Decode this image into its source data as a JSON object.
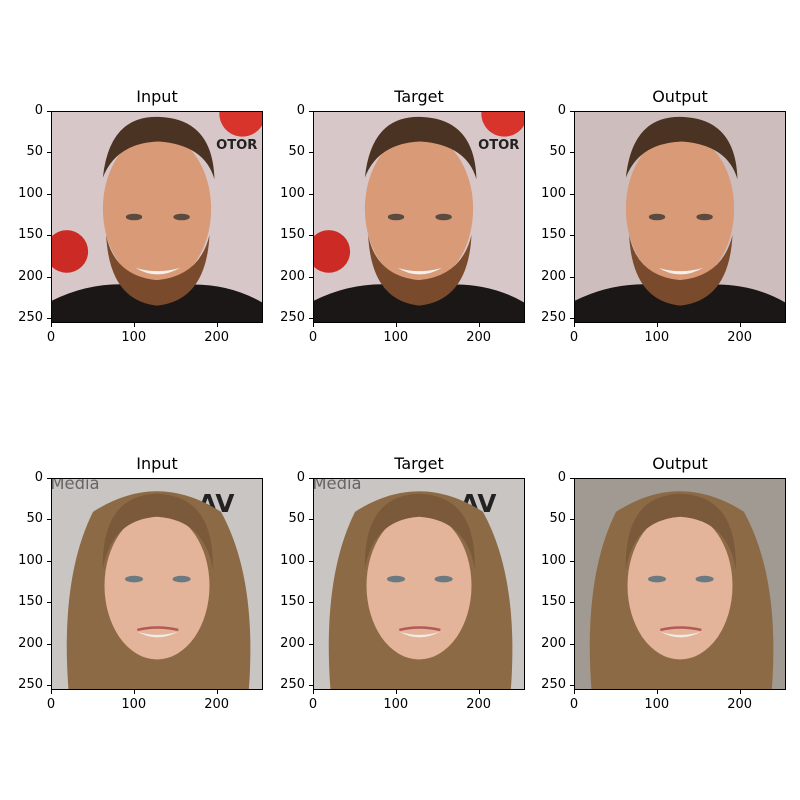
{
  "figure": {
    "rows": [
      {
        "panels": [
          {
            "title": "Input"
          },
          {
            "title": "Target"
          },
          {
            "title": "Output"
          }
        ]
      },
      {
        "panels": [
          {
            "title": "Input"
          },
          {
            "title": "Target"
          },
          {
            "title": "Output"
          }
        ]
      }
    ],
    "y_ticks": [
      "0",
      "50",
      "100",
      "150",
      "200",
      "250"
    ],
    "x_ticks": [
      "0",
      "100",
      "200"
    ]
  }
}
